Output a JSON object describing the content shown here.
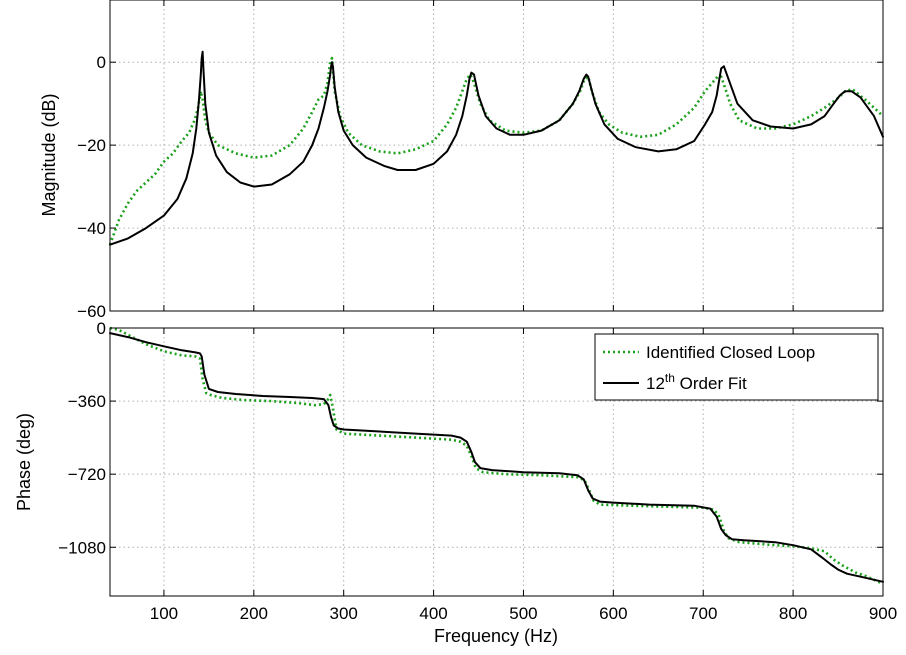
{
  "chart_data": [
    {
      "type": "line",
      "ylabel": "Magnitude (dB)",
      "xlim": [
        40,
        900
      ],
      "ylim": [
        -60,
        15
      ],
      "xticks": [
        100,
        200,
        300,
        400,
        500,
        600,
        700,
        800,
        900
      ],
      "yticks": [
        0,
        -20,
        -40,
        -60
      ],
      "ytick_labels": [
        "0",
        "−20",
        "−40",
        "−60"
      ],
      "grid": true,
      "series": [
        {
          "name": "Identified Closed Loop",
          "color": "#1aa01a",
          "style": "dotted",
          "x": [
            40,
            50,
            60,
            70,
            80,
            90,
            100,
            110,
            120,
            128,
            134,
            138,
            141,
            143,
            146,
            150,
            160,
            180,
            200,
            220,
            240,
            255,
            265,
            272,
            278,
            282,
            285,
            287,
            290,
            296,
            305,
            320,
            340,
            360,
            380,
            400,
            415,
            425,
            432,
            437,
            441,
            445,
            452,
            462,
            480,
            500,
            520,
            540,
            555,
            563,
            568,
            572,
            576,
            584,
            595,
            610,
            630,
            650,
            670,
            690,
            702,
            710,
            716,
            720,
            724,
            730,
            740,
            760,
            780,
            800,
            820,
            835,
            848,
            858,
            866,
            880,
            900
          ],
          "y": [
            -44,
            -38,
            -34,
            -31,
            -29,
            -27,
            -24,
            -22,
            -19,
            -17,
            -14,
            -11,
            -7,
            -9,
            -14,
            -17,
            -20,
            -22,
            -23,
            -22.5,
            -20,
            -16,
            -12,
            -9,
            -8,
            -5,
            0,
            1,
            -7,
            -13,
            -17,
            -20,
            -21.5,
            -22,
            -21,
            -19,
            -15,
            -11,
            -7,
            -4,
            -3,
            -5,
            -10,
            -14,
            -16.5,
            -17,
            -16.5,
            -14,
            -10,
            -7,
            -4,
            -3.5,
            -7,
            -12,
            -15,
            -17,
            -18,
            -17.5,
            -15,
            -11,
            -7,
            -5,
            -3.5,
            -3.5,
            -6,
            -10,
            -14,
            -16,
            -16,
            -15,
            -13,
            -11,
            -9,
            -7,
            -6.5,
            -9,
            -13
          ]
        },
        {
          "name": "12th Order Fit",
          "color": "#000000",
          "style": "solid",
          "x": [
            40,
            60,
            80,
            100,
            115,
            125,
            132,
            136,
            139,
            141,
            142,
            143,
            144,
            146,
            150,
            158,
            170,
            185,
            200,
            220,
            240,
            255,
            265,
            272,
            278,
            282,
            285,
            286,
            287,
            288,
            290,
            294,
            300,
            310,
            325,
            345,
            360,
            380,
            400,
            415,
            425,
            432,
            437,
            440,
            442,
            445,
            450,
            458,
            470,
            485,
            500,
            520,
            540,
            555,
            562,
            567,
            570,
            572,
            575,
            580,
            590,
            605,
            625,
            650,
            670,
            690,
            702,
            710,
            715,
            718,
            720,
            723,
            728,
            738,
            755,
            775,
            800,
            820,
            835,
            845,
            852,
            858,
            865,
            875,
            890,
            900
          ],
          "y": [
            -44,
            -42.5,
            -40,
            -37,
            -33,
            -28,
            -22,
            -16,
            -9,
            -3,
            1,
            2.5,
            -2,
            -10,
            -17,
            -22.5,
            -26.5,
            -29,
            -30,
            -29.5,
            -27,
            -24,
            -20,
            -16,
            -11,
            -7,
            -3,
            -1,
            0,
            -1,
            -6,
            -12,
            -16.5,
            -20,
            -23,
            -25,
            -26,
            -26,
            -24.5,
            -21.5,
            -17.5,
            -13,
            -8,
            -4,
            -2.5,
            -3,
            -8,
            -13,
            -16,
            -17.5,
            -17.5,
            -16.5,
            -14,
            -10,
            -7,
            -4,
            -3,
            -3.5,
            -6,
            -10,
            -15,
            -18.5,
            -20.5,
            -21.5,
            -21,
            -19,
            -15,
            -12,
            -8,
            -4,
            -1.5,
            -1,
            -4,
            -10,
            -14,
            -15.5,
            -16,
            -15,
            -13,
            -10,
            -8,
            -7,
            -7,
            -8.5,
            -13,
            -18
          ]
        }
      ]
    },
    {
      "type": "line",
      "xlabel": "Frequency  (Hz)",
      "ylabel": "Phase (deg)",
      "xlim": [
        40,
        900
      ],
      "ylim": [
        -1320,
        0
      ],
      "xticks": [
        100,
        200,
        300,
        400,
        500,
        600,
        700,
        800,
        900
      ],
      "xtick_labels": [
        "100",
        "200",
        "300",
        "400",
        "500",
        "600",
        "700",
        "800",
        "900"
      ],
      "yticks": [
        0,
        -360,
        -720,
        -1080
      ],
      "ytick_labels": [
        "0",
        "−360",
        "−720",
        "−1080"
      ],
      "grid": true,
      "legend": "top-right",
      "series": [
        {
          "name": "Identified Closed Loop",
          "color": "#1aa01a",
          "style": "dotted",
          "x": [
            40,
            50,
            65,
            80,
            100,
            120,
            135,
            140,
            143,
            147,
            152,
            165,
            190,
            220,
            250,
            268,
            278,
            282,
            285,
            287,
            292,
            300,
            340,
            380,
            420,
            430,
            437,
            442,
            447,
            455,
            480,
            520,
            560,
            568,
            573,
            578,
            585,
            620,
            660,
            700,
            712,
            718,
            723,
            728,
            740,
            780,
            800,
            820,
            835,
            845,
            855,
            870,
            880,
            900
          ],
          "y": [
            0,
            -10,
            -45,
            -80,
            -115,
            -135,
            -140,
            -150,
            -250,
            -320,
            -330,
            -345,
            -355,
            -360,
            -370,
            -380,
            -375,
            -355,
            -330,
            -370,
            -500,
            -520,
            -530,
            -540,
            -550,
            -560,
            -580,
            -630,
            -690,
            -710,
            -720,
            -725,
            -735,
            -750,
            -800,
            -850,
            -870,
            -875,
            -880,
            -885,
            -895,
            -930,
            -1000,
            -1035,
            -1055,
            -1070,
            -1075,
            -1085,
            -1100,
            -1140,
            -1170,
            -1205,
            -1220,
            -1260
          ]
        },
        {
          "name": "12th Order Fit",
          "color": "#000000",
          "style": "solid",
          "x": [
            40,
            60,
            80,
            100,
            120,
            135,
            140,
            142,
            145,
            150,
            160,
            180,
            210,
            240,
            265,
            278,
            283,
            286,
            289,
            294,
            300,
            340,
            380,
            420,
            430,
            437,
            442,
            446,
            452,
            465,
            500,
            540,
            560,
            567,
            572,
            577,
            585,
            600,
            640,
            690,
            708,
            715,
            720,
            725,
            732,
            745,
            780,
            800,
            820,
            832,
            842,
            850,
            860,
            880,
            900
          ],
          "y": [
            -25,
            -45,
            -70,
            -90,
            -110,
            -120,
            -125,
            -140,
            -230,
            -300,
            -315,
            -325,
            -335,
            -340,
            -345,
            -350,
            -380,
            -440,
            -480,
            -495,
            -500,
            -510,
            -520,
            -530,
            -540,
            -560,
            -610,
            -660,
            -690,
            -700,
            -710,
            -715,
            -725,
            -745,
            -800,
            -840,
            -855,
            -860,
            -870,
            -875,
            -890,
            -930,
            -990,
            -1020,
            -1040,
            -1045,
            -1055,
            -1070,
            -1090,
            -1130,
            -1165,
            -1190,
            -1210,
            -1230,
            -1250
          ]
        }
      ]
    }
  ]
}
